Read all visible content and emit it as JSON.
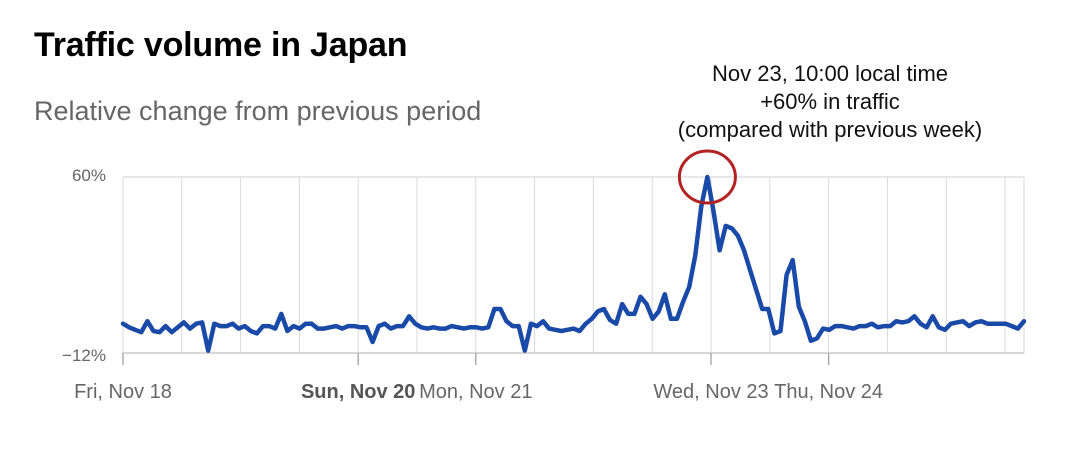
{
  "title": "Traffic volume in Japan",
  "subtitle": "Relative change from previous period",
  "annotation": {
    "lines": [
      "Nov 23, 10:00 local time",
      "+60% in traffic",
      "(compared with previous week)"
    ]
  },
  "colors": {
    "line": "#1a4aa8",
    "highlight_circle": "#b22222",
    "grid": "#d9d9d9"
  },
  "chart_data": {
    "type": "line",
    "title": "Traffic volume in Japan",
    "subtitle": "Relative change from previous period",
    "xlabel": "",
    "ylabel": "",
    "ylim": [
      -12,
      60
    ],
    "y_ticks": [
      "60%",
      "−12%"
    ],
    "x_ticks": [
      {
        "label": "Fri, Nov 18",
        "day": 0,
        "bold": false
      },
      {
        "label": "Sun, Nov 20",
        "day": 2,
        "bold": true
      },
      {
        "label": "Mon, Nov 21",
        "day": 3,
        "bold": false
      },
      {
        "label": "Wed, Nov 23",
        "day": 5,
        "bold": false
      },
      {
        "label": "Thu, Nov 24",
        "day": 6,
        "bold": false
      }
    ],
    "grid": true,
    "series": [
      {
        "values": [
          0,
          -1.5,
          -2.5,
          -3.5,
          1,
          -3,
          -3.5,
          -1,
          -3.5,
          -1.5,
          0.5,
          -2,
          0,
          0.5,
          -11,
          0,
          -1,
          -1,
          0,
          -2,
          -1,
          -3,
          -4,
          -1,
          -1,
          -2,
          4,
          -3,
          -1,
          -2,
          0,
          0,
          -2,
          -2,
          -1.5,
          -1,
          -2,
          -1,
          -1,
          -1.5,
          -1.5,
          -7.5,
          -1,
          0,
          -2,
          -1,
          -1,
          3,
          0,
          -1.5,
          -2,
          -1.5,
          -2,
          -2,
          -1,
          -1.5,
          -2,
          -1.5,
          -1.5,
          -2,
          -1.5,
          6,
          6,
          1,
          -1,
          -1,
          -11,
          0,
          -1,
          1,
          -2,
          -2.5,
          -3,
          -2.5,
          -2,
          -3,
          0,
          2,
          5,
          6,
          1.5,
          0,
          8,
          4,
          4,
          11,
          8,
          2,
          5,
          12,
          2,
          2,
          9,
          15,
          28,
          48,
          60,
          46,
          30,
          40,
          39,
          36,
          30,
          22,
          14,
          6,
          6,
          -4,
          -3,
          20,
          26,
          7,
          1,
          -7,
          -6,
          -2,
          -2.5,
          -1,
          -1,
          -1.5,
          -2,
          -1,
          -1,
          0,
          -1.5,
          -1,
          -1,
          1,
          0.5,
          1,
          3,
          0,
          -1.5,
          3,
          -1.5,
          -2.5,
          0,
          0.5,
          1,
          -1,
          0.5,
          1,
          0,
          0,
          0,
          0,
          -1,
          -2,
          1
        ]
      }
    ],
    "highlight": {
      "label": "Nov 23, 10:00 local time",
      "value": 60
    }
  }
}
